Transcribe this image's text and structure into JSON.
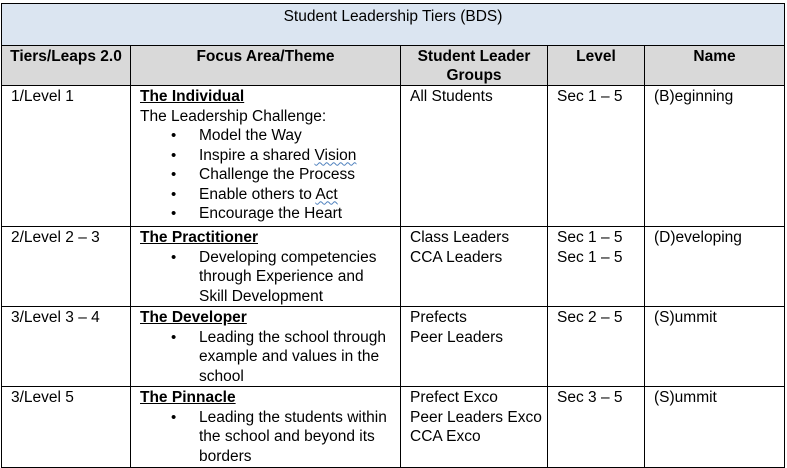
{
  "title": "Student Leadership Tiers (BDS)",
  "headers": [
    "Tiers/Leaps 2.0",
    "Focus Area/Theme",
    "Student Leader Groups",
    "Level",
    "Name"
  ],
  "rows": [
    {
      "tier": "1/Level 1",
      "theme_title": "The Individual",
      "theme_intro": "The Leadership Challenge:",
      "bullets": [
        {
          "pre": "Model the Way",
          "mark": "",
          "post": ""
        },
        {
          "pre": "Inspire a shared ",
          "mark": "Vision",
          "post": ""
        },
        {
          "pre": "Challenge the Process",
          "mark": "",
          "post": ""
        },
        {
          "pre": "Enable others to ",
          "mark": "Act",
          "post": ""
        },
        {
          "pre": "Encourage the Heart",
          "mark": "",
          "post": ""
        }
      ],
      "groups": [
        "All Students"
      ],
      "levels": [
        "Sec 1 – 5"
      ],
      "name": "(B)eginning"
    },
    {
      "tier": "2/Level 2 – 3",
      "theme_title": "The Practitioner",
      "bullets_text": [
        "Developing competencies through Experience and Skill Development"
      ],
      "groups": [
        "Class Leaders",
        "CCA Leaders"
      ],
      "levels": [
        "Sec 1 – 5",
        "Sec 1 – 5"
      ],
      "name": "(D)eveloping"
    },
    {
      "tier": "3/Level 3 – 4",
      "theme_title": "The Developer",
      "bullets_text": [
        "Leading the school through example and values in the school"
      ],
      "groups": [
        "Prefects",
        "Peer Leaders"
      ],
      "levels": [
        "Sec 2 – 5"
      ],
      "name": "(S)ummit"
    },
    {
      "tier": "3/Level 5",
      "theme_title": "The Pinnacle",
      "bullets_text": [
        "Leading the students within the school and beyond its borders"
      ],
      "groups": [
        "Prefect Exco",
        "Peer Leaders Exco",
        "CCA Exco"
      ],
      "levels": [
        "Sec 3 – 5"
      ],
      "name": "(S)ummit"
    }
  ]
}
